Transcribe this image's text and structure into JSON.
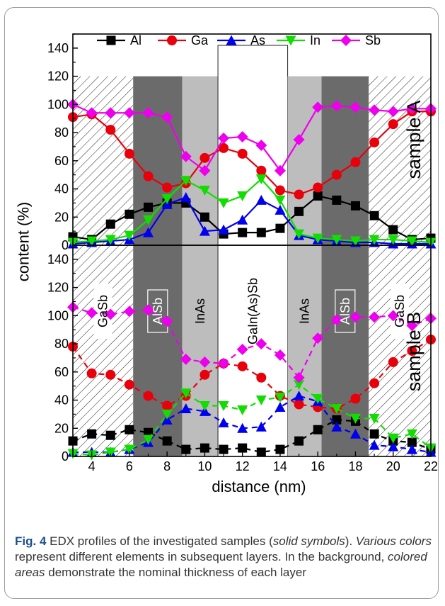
{
  "chart_data": [
    {
      "panel": "top",
      "type": "line",
      "label": "sample A",
      "line_style": "solid",
      "ylim": [
        0,
        150
      ],
      "xlim": [
        3,
        22
      ],
      "yticks": [
        0,
        20,
        40,
        60,
        80,
        100,
        120,
        140
      ],
      "x": [
        3,
        4,
        5,
        6,
        7,
        8,
        9,
        10,
        11,
        12,
        13,
        14,
        15,
        16,
        17,
        18,
        19,
        20,
        21,
        22
      ],
      "series": [
        {
          "name": "Al",
          "color": "#000000",
          "marker": "square",
          "values": [
            6,
            4,
            15,
            22,
            27,
            30,
            30,
            20,
            8,
            9,
            9,
            12,
            24,
            35,
            32,
            28,
            21,
            11,
            4,
            5
          ]
        },
        {
          "name": "Ga",
          "color": "#e8000b",
          "marker": "circle",
          "values": [
            91,
            93,
            82,
            65,
            49,
            41,
            44,
            62,
            69,
            65,
            53,
            39,
            36,
            41,
            50,
            59,
            73,
            86,
            95,
            95
          ]
        },
        {
          "name": "As",
          "color": "#0000ee",
          "marker": "triangle-up",
          "values": [
            1,
            2,
            3,
            4,
            9,
            29,
            34,
            10,
            11,
            18,
            32,
            25,
            7,
            4,
            3,
            2,
            2,
            1,
            1,
            1
          ]
        },
        {
          "name": "In",
          "color": "#11dd00",
          "marker": "triangle-down",
          "values": [
            2,
            3,
            4,
            7,
            18,
            33,
            46,
            39,
            30,
            35,
            47,
            32,
            8,
            5,
            4,
            3,
            4,
            4,
            3,
            2
          ]
        },
        {
          "name": "Sb",
          "color": "#ee00ee",
          "marker": "diamond",
          "values": [
            100,
            94,
            94,
            94,
            94,
            91,
            63,
            53,
            76,
            77,
            71,
            53,
            75,
            98,
            99,
            98,
            96,
            95,
            97,
            97
          ]
        }
      ]
    },
    {
      "panel": "bottom",
      "type": "line",
      "label": "sample B",
      "line_style": "dashed",
      "ylim": [
        0,
        150
      ],
      "xlim": [
        3,
        22
      ],
      "yticks": [
        0,
        20,
        40,
        60,
        80,
        100,
        120,
        140
      ],
      "x": [
        3,
        4,
        5,
        6,
        7,
        8,
        9,
        10,
        11,
        12,
        13,
        14,
        15,
        16,
        17,
        18,
        19,
        20,
        21,
        22
      ],
      "series": [
        {
          "name": "Al",
          "color": "#000000",
          "marker": "square",
          "values": [
            11,
            16,
            15,
            19,
            17,
            11,
            5,
            6,
            5,
            6,
            3,
            5,
            11,
            19,
            26,
            25,
            16,
            11,
            10,
            5
          ]
        },
        {
          "name": "Ga",
          "color": "#e8000b",
          "marker": "circle",
          "values": [
            78,
            59,
            58,
            51,
            43,
            36,
            43,
            58,
            66,
            64,
            56,
            43,
            37,
            35,
            34,
            41,
            52,
            67,
            75,
            83
          ]
        },
        {
          "name": "As",
          "color": "#0000ee",
          "marker": "triangle-up",
          "values": [
            3,
            3,
            3,
            5,
            10,
            26,
            34,
            32,
            24,
            20,
            21,
            35,
            43,
            39,
            21,
            16,
            8,
            7,
            5,
            3
          ]
        },
        {
          "name": "In",
          "color": "#11dd00",
          "marker": "triangle-down",
          "values": [
            2,
            1,
            3,
            5,
            12,
            30,
            45,
            36,
            36,
            33,
            40,
            42,
            51,
            41,
            34,
            27,
            27,
            13,
            16,
            6
          ]
        },
        {
          "name": "Sb",
          "color": "#ee00ee",
          "marker": "diamond",
          "values": [
            106,
            102,
            101,
            103,
            104,
            96,
            69,
            67,
            66,
            76,
            80,
            72,
            56,
            84,
            97,
            99,
            99,
            100,
            93,
            98
          ]
        }
      ]
    }
  ],
  "legend": {
    "position": "top",
    "items": [
      {
        "name": "Al",
        "color": "#000000",
        "marker": "square"
      },
      {
        "name": "Ga",
        "color": "#e8000b",
        "marker": "circle"
      },
      {
        "name": "As",
        "color": "#0000ee",
        "marker": "triangle-up"
      },
      {
        "name": "In",
        "color": "#11dd00",
        "marker": "triangle-down"
      },
      {
        "name": "Sb",
        "color": "#ee00ee",
        "marker": "diamond"
      }
    ]
  },
  "axes": {
    "ylabel": "content (%)",
    "xlabel": "distance (nm)",
    "xticks": [
      4,
      6,
      8,
      10,
      12,
      14,
      16,
      18,
      20,
      22
    ]
  },
  "layers": [
    {
      "name": "GaSb",
      "x0": 3,
      "x1": 6.2,
      "fill": "hatched"
    },
    {
      "name": "AlSb",
      "x0": 6.2,
      "x1": 8.8,
      "fill": "#6b6b6b"
    },
    {
      "name": "InAs",
      "x0": 8.8,
      "x1": 10.7,
      "fill": "#bdbdbd"
    },
    {
      "name": "GaIn(As)Sb",
      "x0": 10.7,
      "x1": 14.4,
      "fill": "#ffffff"
    },
    {
      "name": "InAs",
      "x0": 14.4,
      "x1": 16.2,
      "fill": "#bdbdbd"
    },
    {
      "name": "AlSb",
      "x0": 16.2,
      "x1": 18.7,
      "fill": "#6b6b6b"
    },
    {
      "name": "GaSb",
      "x0": 18.7,
      "x1": 22,
      "fill": "hatched"
    }
  ],
  "layer_regions_ylim_top_panel": [
    0,
    120
  ],
  "caption": {
    "fig_label": "Fig. 4",
    "seg1": " EDX profiles of the investigated samples (",
    "seg2": "solid symbols",
    "seg3": "). ",
    "seg4": "Various colors",
    "seg5": " represent different elements in subsequent layers. In the background, ",
    "seg6": "colored areas",
    "seg7": " demonstrate the nominal thickness of each layer"
  }
}
